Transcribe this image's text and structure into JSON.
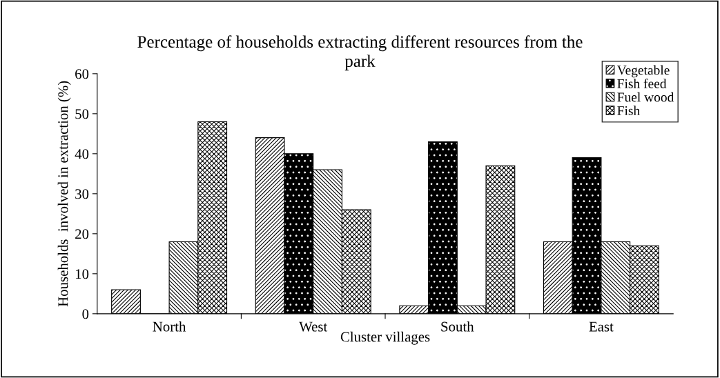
{
  "chart_data": {
    "type": "bar",
    "title": "Percentage of households extracting different resources from the\npark",
    "xlabel": "Cluster villages",
    "ylabel": "Households  involved in extraction (%)",
    "categories": [
      "North",
      "West",
      "South",
      "East"
    ],
    "series": [
      {
        "name": "Vegetable",
        "color": "#000000",
        "values": [
          6,
          44,
          2,
          18
        ]
      },
      {
        "name": "Fish feed",
        "color": "#000000",
        "values": [
          0,
          40,
          43,
          39
        ]
      },
      {
        "name": "Fuel wood",
        "color": "#000000",
        "values": [
          18,
          36,
          2,
          18
        ]
      },
      {
        "name": "Fish",
        "color": "#000000",
        "values": [
          48,
          26,
          37,
          17
        ]
      }
    ],
    "ylim": [
      0,
      60
    ],
    "yticks": [
      0,
      10,
      20,
      30,
      40,
      50,
      60
    ],
    "grid": false,
    "legend": "top right"
  }
}
